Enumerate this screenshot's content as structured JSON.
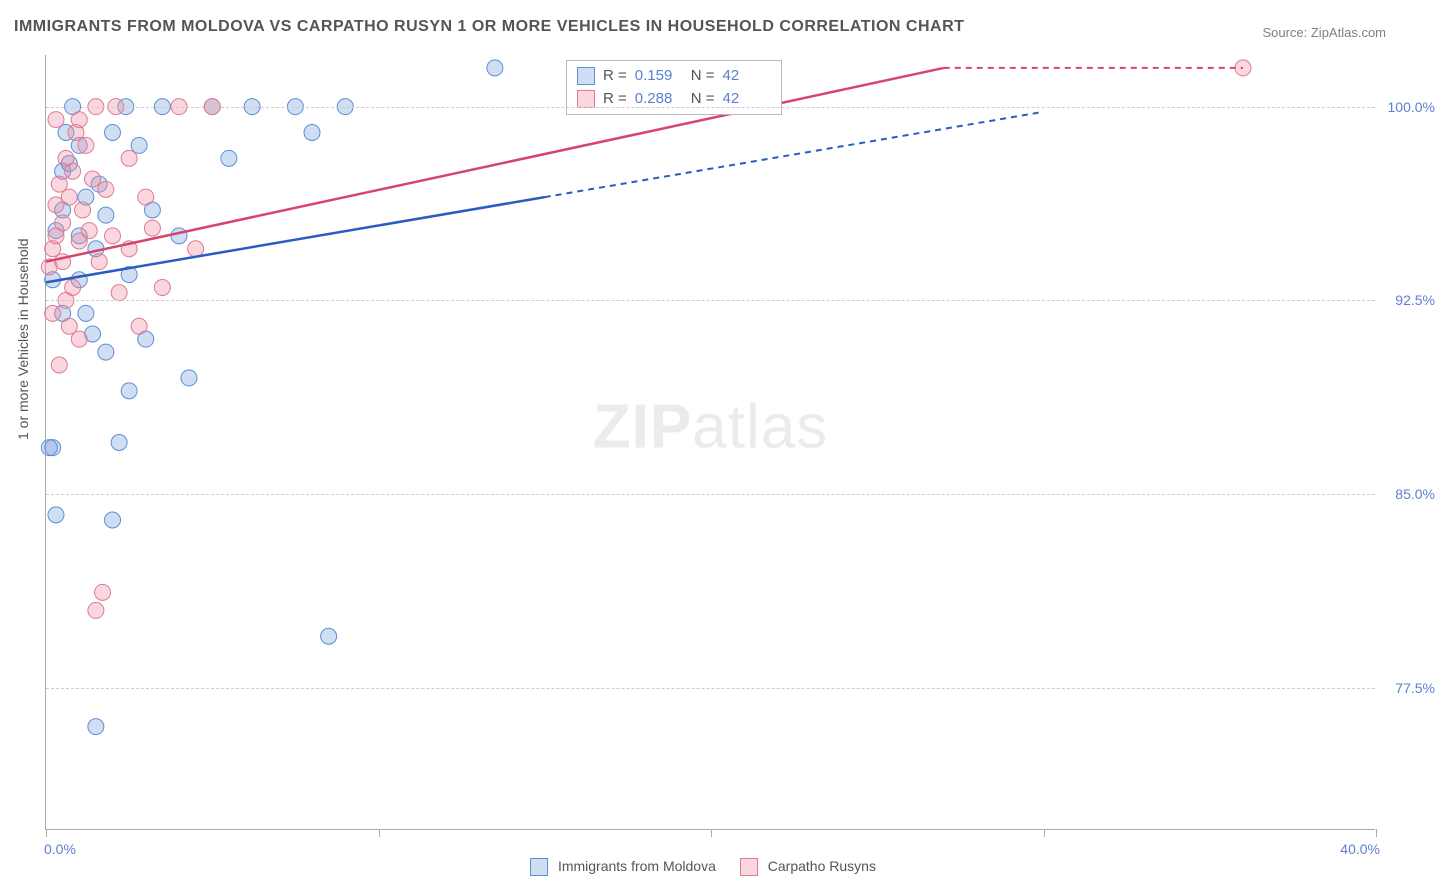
{
  "title": "IMMIGRANTS FROM MOLDOVA VS CARPATHO RUSYN 1 OR MORE VEHICLES IN HOUSEHOLD CORRELATION CHART",
  "source": "Source: ZipAtlas.com",
  "ylabel": "1 or more Vehicles in Household",
  "watermark_bold": "ZIP",
  "watermark_light": "atlas",
  "chart": {
    "type": "scatter",
    "x_domain": [
      0,
      40
    ],
    "y_domain": [
      72,
      102
    ],
    "y_gridlines": [
      77.5,
      85.0,
      92.5,
      100.0
    ],
    "y_tick_labels": [
      "77.5%",
      "85.0%",
      "92.5%",
      "100.0%"
    ],
    "x_ticks": [
      0,
      10,
      20,
      30,
      40
    ],
    "x_axis_labels": {
      "left": "0.0%",
      "right": "40.0%"
    },
    "grid_color": "#cccccc",
    "axis_color": "#aaaaaa",
    "plot_bg": "#ffffff",
    "series": [
      {
        "name": "Immigrants from Moldova",
        "fill": "rgba(120,160,220,0.35)",
        "stroke": "#5b8fd6",
        "line_color": "#2a5bc4",
        "R": "0.159",
        "N": "42",
        "trend": {
          "x1": 0,
          "y1": 93.2,
          "x2": 15,
          "y2": 96.5
        },
        "trend_dash": {
          "x1": 15,
          "y1": 96.5,
          "x2": 30,
          "y2": 99.8
        },
        "points": [
          [
            0.2,
            93.3
          ],
          [
            0.3,
            95.2
          ],
          [
            0.5,
            96.0
          ],
          [
            0.5,
            97.5
          ],
          [
            0.6,
            99.0
          ],
          [
            0.8,
            100.0
          ],
          [
            1.0,
            98.5
          ],
          [
            1.0,
            93.3
          ],
          [
            1.0,
            95.0
          ],
          [
            1.2,
            96.5
          ],
          [
            1.2,
            92.0
          ],
          [
            1.4,
            91.2
          ],
          [
            1.5,
            94.5
          ],
          [
            1.6,
            97.0
          ],
          [
            1.8,
            95.8
          ],
          [
            1.8,
            90.5
          ],
          [
            2.0,
            99.0
          ],
          [
            2.0,
            84.0
          ],
          [
            2.2,
            87.0
          ],
          [
            2.4,
            100.0
          ],
          [
            2.5,
            89.0
          ],
          [
            2.5,
            93.5
          ],
          [
            2.8,
            98.5
          ],
          [
            3.0,
            91.0
          ],
          [
            3.2,
            96.0
          ],
          [
            3.5,
            100.0
          ],
          [
            4.0,
            95.0
          ],
          [
            4.3,
            89.5
          ],
          [
            5.0,
            100.0
          ],
          [
            5.5,
            98.0
          ],
          [
            6.2,
            100.0
          ],
          [
            7.5,
            100.0
          ],
          [
            8.0,
            99.0
          ],
          [
            8.5,
            79.5
          ],
          [
            9.0,
            100.0
          ],
          [
            0.2,
            86.8
          ],
          [
            0.1,
            86.8
          ],
          [
            0.3,
            84.2
          ],
          [
            1.5,
            76.0
          ],
          [
            0.5,
            92.0
          ],
          [
            0.7,
            97.8
          ],
          [
            13.5,
            101.5
          ]
        ]
      },
      {
        "name": "Carpatho Rusyns",
        "fill": "rgba(240,140,160,0.35)",
        "stroke": "#e07a94",
        "line_color": "#d6456e",
        "R": "0.288",
        "N": "42",
        "trend": {
          "x1": 0,
          "y1": 94.0,
          "x2": 27,
          "y2": 101.5
        },
        "trend_dash": {
          "x1": 27,
          "y1": 101.5,
          "x2": 36,
          "y2": 101.5
        },
        "points": [
          [
            0.1,
            93.8
          ],
          [
            0.2,
            94.5
          ],
          [
            0.3,
            95.0
          ],
          [
            0.3,
            96.2
          ],
          [
            0.4,
            97.0
          ],
          [
            0.5,
            95.5
          ],
          [
            0.5,
            94.0
          ],
          [
            0.6,
            98.0
          ],
          [
            0.6,
            92.5
          ],
          [
            0.7,
            96.5
          ],
          [
            0.7,
            91.5
          ],
          [
            0.8,
            93.0
          ],
          [
            0.8,
            97.5
          ],
          [
            0.9,
            99.0
          ],
          [
            1.0,
            91.0
          ],
          [
            1.0,
            94.8
          ],
          [
            1.1,
            96.0
          ],
          [
            1.2,
            98.5
          ],
          [
            1.3,
            95.2
          ],
          [
            1.4,
            97.2
          ],
          [
            1.5,
            100.0
          ],
          [
            1.5,
            80.5
          ],
          [
            1.6,
            94.0
          ],
          [
            1.7,
            81.2
          ],
          [
            1.8,
            96.8
          ],
          [
            2.0,
            95.0
          ],
          [
            2.1,
            100.0
          ],
          [
            2.2,
            92.8
          ],
          [
            2.5,
            94.5
          ],
          [
            2.5,
            98.0
          ],
          [
            2.8,
            91.5
          ],
          [
            3.0,
            96.5
          ],
          [
            3.2,
            95.3
          ],
          [
            3.5,
            93.0
          ],
          [
            4.0,
            100.0
          ],
          [
            4.5,
            94.5
          ],
          [
            5.0,
            100.0
          ],
          [
            0.4,
            90.0
          ],
          [
            0.3,
            99.5
          ],
          [
            0.2,
            92.0
          ],
          [
            1.0,
            99.5
          ],
          [
            36.0,
            101.5
          ]
        ]
      }
    ]
  },
  "legend": {
    "series1": "Immigrants from Moldova",
    "series2": "Carpatho Rusyns",
    "stat_R_label": "R  =",
    "stat_N_label": "N  ="
  }
}
